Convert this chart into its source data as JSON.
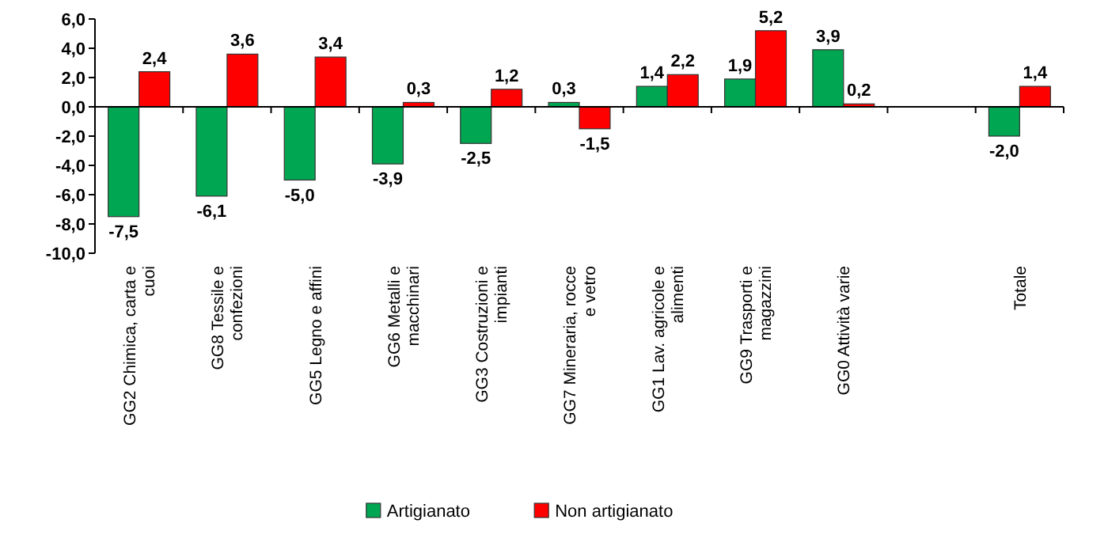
{
  "chart_data": {
    "type": "bar",
    "categories": [
      "GG2 Chimica, carta e cuoi",
      "GG8 Tessile e confezioni",
      "GG5 Legno e affini",
      "GG6 Metalli e macchinari",
      "GG3 Costruzioni e impianti",
      "GG7 Mineraria, rocce e vetro",
      "GG1 Lav. agricole e alimenti",
      "GG9 Trasporti e magazzini",
      "GG0 Attività varie",
      null,
      "Totale"
    ],
    "series": [
      {
        "name": "Artigianato",
        "color": "#00a651",
        "values": [
          -7.5,
          -6.1,
          -5.0,
          -3.9,
          -2.5,
          0.3,
          1.4,
          1.9,
          3.9,
          null,
          -2.0
        ],
        "value_labels": [
          "-7,5",
          "-6,1",
          "-5,0",
          "-3,9",
          "-2,5",
          "0,3",
          "1,4",
          "1,9",
          "3,9",
          null,
          "-2,0"
        ]
      },
      {
        "name": "Non artigianato",
        "color": "#ff0000",
        "values": [
          2.4,
          3.6,
          3.4,
          0.3,
          1.2,
          -1.5,
          2.2,
          5.2,
          0.2,
          null,
          1.4
        ],
        "value_labels": [
          "2,4",
          "3,6",
          "3,4",
          "0,3",
          "1,2",
          "-1,5",
          "2,2",
          "5,2",
          "0,2",
          null,
          "1,4"
        ]
      }
    ],
    "ylim": [
      -10,
      6
    ],
    "yticks": [
      {
        "value": -10,
        "label": "-10,0"
      },
      {
        "value": -8,
        "label": "-8,0"
      },
      {
        "value": -6,
        "label": "-6,0"
      },
      {
        "value": -4,
        "label": "-4,0"
      },
      {
        "value": -2,
        "label": "-2,0"
      },
      {
        "value": 0,
        "label": "0,0"
      },
      {
        "value": 2,
        "label": "2,0"
      },
      {
        "value": 4,
        "label": "4,0"
      },
      {
        "value": 6,
        "label": "6,0"
      }
    ],
    "legend": "bottom"
  }
}
